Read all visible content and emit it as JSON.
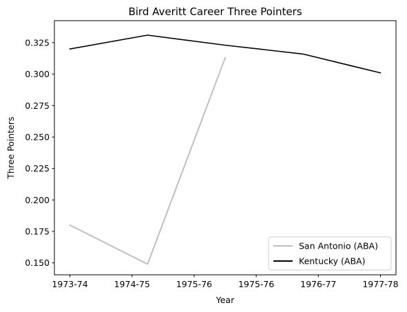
{
  "chart_data": {
    "type": "line",
    "title": "Bird Averitt Career Three Pointers",
    "xlabel": "Year",
    "ylabel": "Three Pointers",
    "x_ticks": [
      "1973-74",
      "1974-75",
      "1975-76",
      "1975-76",
      "1976-77",
      "1977-78"
    ],
    "xlim": [
      -0.2,
      4.2
    ],
    "ylim": [
      0.1405,
      0.3425
    ],
    "y_ticks": [
      0.15,
      0.175,
      0.2,
      0.225,
      0.25,
      0.275,
      0.3,
      0.325
    ],
    "y_tick_labels": [
      "0.150",
      "0.175",
      "0.200",
      "0.225",
      "0.250",
      "0.275",
      "0.300",
      "0.325"
    ],
    "grid": false,
    "legend_position": "lower-right",
    "series": [
      {
        "name": "San Antonio (ABA)",
        "color": "#bfbfbf",
        "x": [
          0,
          1,
          2
        ],
        "y": [
          0.18,
          0.149,
          0.313
        ]
      },
      {
        "name": "Kentucky (ABA)",
        "color": "#000000",
        "x": [
          0,
          1,
          2,
          3,
          4
        ],
        "y": [
          0.32,
          0.331,
          0.323,
          0.316,
          0.301
        ]
      }
    ]
  }
}
